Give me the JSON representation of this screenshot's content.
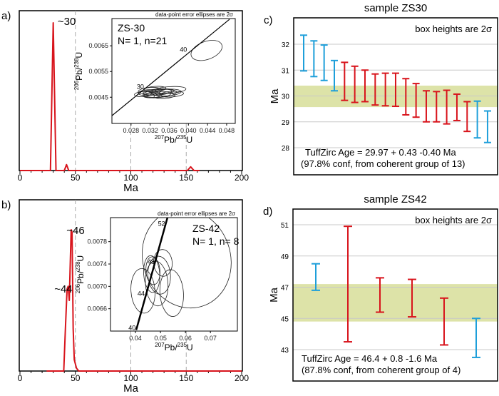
{
  "chart_data": [
    {
      "panel": "a)",
      "type": "line",
      "xlabel": "Ma",
      "xlim": [
        0,
        200
      ],
      "xticks": [
        "0",
        "50",
        "100",
        "150",
        "200"
      ],
      "annotations": [
        "~30"
      ],
      "pdf": [
        [
          0,
          0
        ],
        [
          27.5,
          0
        ],
        [
          30,
          1
        ],
        [
          32.5,
          0
        ],
        [
          40,
          0
        ],
        [
          42,
          0.04
        ],
        [
          44,
          0
        ],
        [
          151,
          0
        ],
        [
          154,
          0.025
        ],
        [
          157,
          0
        ],
        [
          162,
          0
        ]
      ],
      "inset": {
        "type": "scatter",
        "note": "data-point error ellipses are 2σ",
        "sample": "ZS-30",
        "counts": "N= 1, n=21",
        "xlabel_mass": "207",
        "xlabel_el": "Pb/",
        "xlabel_mass2": "235",
        "xlabel_el2": "U",
        "ylabel_mass": "206",
        "ylabel_el": "Pb/",
        "ylabel_mass2": "238",
        "ylabel_el2": "U",
        "xlim": [
          0.024,
          0.0498
        ],
        "ylim": [
          0.00348,
          0.00756
        ],
        "xticks": [
          "0.028",
          "0.032",
          "0.036",
          "0.040",
          "0.044",
          "0.048"
        ],
        "yticks": [
          "0.0045",
          "0.0055",
          "0.0065"
        ],
        "concordia": [
          [
            0.024,
            0.00378
          ],
          [
            0.0486,
            0.00753
          ]
        ],
        "concordia_labels": [
          {
            "t": "30",
            "x": 0.0292,
            "y": 0.00482
          },
          {
            "t": "40",
            "x": 0.0382,
            "y": 0.00627
          }
        ],
        "ellipses": [
          [
            0.0438,
            0.00632,
            0.0034,
            0.00035
          ],
          [
            0.0305,
            0.00462,
            0.0018,
            0.0001
          ],
          [
            0.032,
            0.00475,
            0.0025,
            0.00013
          ],
          [
            0.0335,
            0.0047,
            0.003,
            0.00012
          ],
          [
            0.034,
            0.00465,
            0.0035,
            0.00015
          ],
          [
            0.0355,
            0.00468,
            0.003,
            0.00013
          ],
          [
            0.036,
            0.00478,
            0.0035,
            0.00013
          ],
          [
            0.0345,
            0.00472,
            0.0025,
            0.0001
          ],
          [
            0.0325,
            0.00458,
            0.002,
            0.0001
          ],
          [
            0.0335,
            0.0046,
            0.0028,
            0.00012
          ],
          [
            0.035,
            0.00455,
            0.0022,
            0.0001
          ],
          [
            0.0315,
            0.00468,
            0.002,
            0.00011
          ],
          [
            0.0365,
            0.00462,
            0.0025,
            0.00011
          ],
          [
            0.033,
            0.00482,
            0.0023,
            0.0001
          ]
        ]
      }
    },
    {
      "panel": "b)",
      "type": "line",
      "xlabel": "Ma",
      "xlim": [
        0,
        200
      ],
      "xticks": [
        "0",
        "50",
        "100",
        "150",
        "200"
      ],
      "annotations": [
        "~46",
        "~44"
      ],
      "pdf": [
        [
          24,
          0
        ],
        [
          39.5,
          0
        ],
        [
          41,
          0.3
        ],
        [
          42.5,
          0.58
        ],
        [
          43.5,
          0.6
        ],
        [
          44.5,
          0.5
        ],
        [
          45.5,
          0.8
        ],
        [
          46.2,
          1
        ],
        [
          47,
          0.98
        ],
        [
          48,
          0.3
        ],
        [
          49,
          0.08
        ],
        [
          51,
          0.02
        ],
        [
          53,
          0
        ],
        [
          200,
          0
        ]
      ],
      "inset": {
        "type": "scatter",
        "note": "data-point error ellipses are 2σ",
        "sample": "ZS-42",
        "counts": "N= 1, n= 8",
        "xlabel_mass": "207",
        "xlabel_el": "Pb/",
        "xlabel_mass2": "235",
        "xlabel_el2": "U",
        "ylabel_mass": "206",
        "ylabel_el": "Pb/",
        "ylabel_mass2": "238",
        "ylabel_el2": "U",
        "xlim": [
          0.03,
          0.0808
        ],
        "ylim": [
          0.0062,
          0.00823
        ],
        "xticks": [
          "0.04",
          "0.05",
          "0.06",
          "0.07"
        ],
        "yticks": [
          "0.0066",
          "0.0070",
          "0.0074",
          "0.0078"
        ],
        "concordia": [
          [
            0.0403,
            0.00622
          ],
          [
            0.0528,
            0.00823
          ]
        ],
        "concordia_labels": [
          {
            "t": "52",
            "x": 0.049,
            "y": 0.00808
          },
          {
            "t": "48",
            "x": 0.0448,
            "y": 0.0074
          },
          {
            "t": "44",
            "x": 0.0408,
            "y": 0.00683
          },
          {
            "t": "40",
            "x": 0.0372,
            "y": 0.00622
          }
        ],
        "ellipses": [
          [
            0.0605,
            0.0075,
            0.0175,
            0.0009
          ],
          [
            0.0465,
            0.00722,
            0.0032,
            0.00033
          ],
          [
            0.051,
            0.00742,
            0.0037,
            0.00024
          ],
          [
            0.0495,
            0.0072,
            0.0045,
            0.00034
          ],
          [
            0.043,
            0.00692,
            0.0048,
            0.0004
          ],
          [
            0.0545,
            0.00688,
            0.0047,
            0.00042
          ],
          [
            0.0485,
            0.00705,
            0.0045,
            0.0004
          ],
          [
            0.047,
            0.00728,
            0.0028,
            0.00025
          ]
        ]
      }
    },
    {
      "panel": "c)",
      "type": "errorbar",
      "title": "sample ZS30",
      "ylabel": "Ma",
      "ylim": [
        27.6,
        32.9
      ],
      "yticks": [
        28,
        29,
        30,
        31,
        32
      ],
      "note": "box heights are 2σ",
      "band": [
        29.57,
        30.4
      ],
      "result_line1": "TuffZirc Age = 29.97 + 0.43  -0.40 Ma",
      "result_line2": "(97.8% conf, from coherent group of 13)",
      "bars": [
        [
          32.35,
          30.97,
          "out"
        ],
        [
          32.13,
          30.75,
          "out"
        ],
        [
          31.97,
          30.6,
          "out"
        ],
        [
          31.37,
          30.2,
          "out"
        ],
        [
          31.3,
          29.83,
          "in"
        ],
        [
          31.15,
          29.75,
          "in"
        ],
        [
          31.0,
          29.78,
          "in"
        ],
        [
          30.85,
          29.65,
          "in"
        ],
        [
          30.88,
          29.62,
          "in"
        ],
        [
          30.88,
          29.6,
          "in"
        ],
        [
          30.67,
          29.27,
          "in"
        ],
        [
          30.48,
          29.18,
          "in"
        ],
        [
          30.2,
          29.0,
          "in"
        ],
        [
          30.17,
          29.0,
          "in"
        ],
        [
          30.22,
          28.92,
          "in"
        ],
        [
          30.07,
          29.05,
          "in"
        ],
        [
          29.78,
          28.63,
          "in"
        ],
        [
          29.8,
          28.38,
          "out"
        ],
        [
          29.42,
          28.2,
          "out"
        ]
      ]
    },
    {
      "panel": "d)",
      "type": "errorbar",
      "title": "sample ZS42",
      "ylabel": "Ma",
      "ylim": [
        41.6,
        51.5
      ],
      "yticks": [
        43,
        45,
        47,
        49,
        51
      ],
      "note": "box heights are 2σ",
      "band": [
        44.8,
        47.2
      ],
      "result_line1": "TuffZirc Age = 46.4 + 0.8  -1.6 Ma",
      "result_line2": "(87.8% conf, from coherent group of 4)",
      "bars": [
        [
          48.5,
          46.8,
          "out"
        ],
        [
          50.9,
          43.5,
          "in"
        ],
        [
          47.6,
          45.4,
          "in"
        ],
        [
          47.5,
          45.1,
          "in"
        ],
        [
          46.3,
          43.3,
          "in"
        ],
        [
          45.0,
          42.5,
          "out"
        ]
      ]
    }
  ],
  "colors": {
    "pdf": "#d8141c",
    "in": "#d8141c",
    "out": "#1e9fda",
    "band": "#dde3a8",
    "grid": "#c8c8c8"
  }
}
